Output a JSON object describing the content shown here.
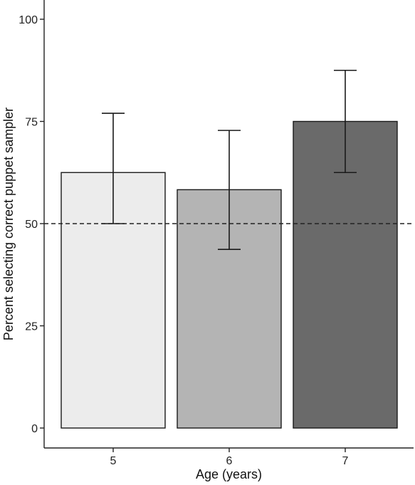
{
  "chart_data": {
    "type": "bar",
    "categories": [
      "5",
      "6",
      "7"
    ],
    "values": [
      62.5,
      58.3,
      75
    ],
    "error_bars": [
      {
        "lower": 50,
        "upper": 77
      },
      {
        "lower": 43.7,
        "upper": 72.8
      },
      {
        "lower": 62.5,
        "upper": 87.5
      }
    ],
    "bar_colors": [
      "#ececec",
      "#b4b4b4",
      "#6a6a6a"
    ],
    "reference_line": {
      "y": 50,
      "style": "dashed"
    },
    "title": "",
    "xlabel": "Age (years)",
    "ylabel": "Percent selecting correct puppet sampler",
    "ylim": [
      0,
      100
    ],
    "yticks": [
      0,
      25,
      50,
      75,
      100
    ],
    "yticklabels": [
      "0",
      "25",
      "50",
      "75",
      "100"
    ],
    "grid": false,
    "legend": "none"
  }
}
